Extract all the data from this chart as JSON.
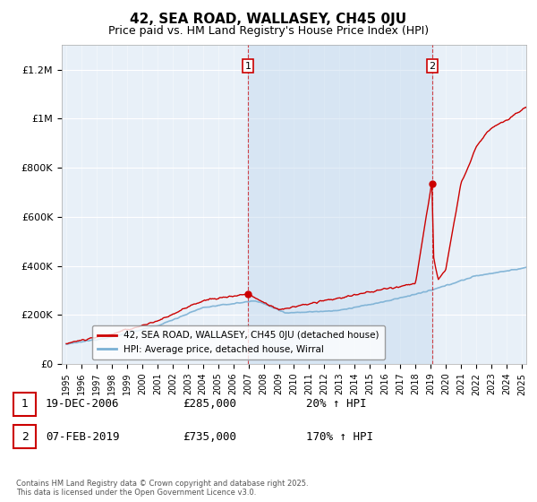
{
  "title": "42, SEA ROAD, WALLASEY, CH45 0JU",
  "subtitle": "Price paid vs. HM Land Registry's House Price Index (HPI)",
  "hpi_color": "#7ab0d4",
  "price_color": "#cc0000",
  "shade_color": "#ddeeff",
  "background_color": "#ffffff",
  "plot_bg_color": "#e8f0f8",
  "ylim": [
    0,
    1300000
  ],
  "yticks": [
    0,
    200000,
    400000,
    600000,
    800000,
    1000000,
    1200000
  ],
  "ytick_labels": [
    "£0",
    "£200K",
    "£400K",
    "£600K",
    "£800K",
    "£1M",
    "£1.2M"
  ],
  "xstart": 1995,
  "xend": 2025,
  "transaction1_date": 2006.97,
  "transaction1_price": 285000,
  "transaction1_label": "1",
  "transaction1_text": "19-DEC-2006",
  "transaction1_change": "20% ↑ HPI",
  "transaction2_date": 2019.1,
  "transaction2_price": 735000,
  "transaction2_label": "2",
  "transaction2_text": "07-FEB-2019",
  "transaction2_change": "170% ↑ HPI",
  "legend_label1": "42, SEA ROAD, WALLASEY, CH45 0JU (detached house)",
  "legend_label2": "HPI: Average price, detached house, Wirral",
  "footnote": "Contains HM Land Registry data © Crown copyright and database right 2025.\nThis data is licensed under the Open Government Licence v3.0."
}
